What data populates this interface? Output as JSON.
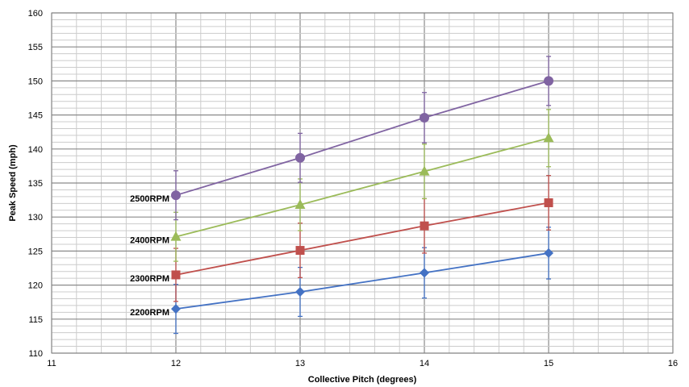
{
  "chart_data": {
    "type": "line",
    "title": "",
    "xlabel": "Collective Pitch (degrees)",
    "ylabel": "Peak Speed (mph)",
    "xlim": [
      11,
      16
    ],
    "ylim": [
      110,
      160
    ],
    "x_ticks": [
      "11",
      "12",
      "13",
      "14",
      "15",
      "16"
    ],
    "y_ticks": [
      "110",
      "115",
      "120",
      "125",
      "130",
      "135",
      "140",
      "145",
      "150",
      "155",
      "160"
    ],
    "grid": true,
    "legend": "none",
    "error_bars": true,
    "series": [
      {
        "name": "2200RPM",
        "color": "#4472c4",
        "marker": "diamond",
        "x": [
          12,
          13,
          14,
          15
        ],
        "y": [
          116.5,
          119.0,
          121.8,
          124.7
        ],
        "error": [
          3.6,
          3.6,
          3.7,
          3.8
        ]
      },
      {
        "name": "2300RPM",
        "color": "#c0504d",
        "marker": "square",
        "x": [
          12,
          13,
          14,
          15
        ],
        "y": [
          121.5,
          125.1,
          128.7,
          132.1
        ],
        "error": [
          3.9,
          4.0,
          4.0,
          4.0
        ]
      },
      {
        "name": "2400RPM",
        "color": "#9bbb59",
        "marker": "triangle",
        "x": [
          12,
          13,
          14,
          15
        ],
        "y": [
          127.1,
          131.8,
          136.7,
          141.6
        ],
        "error": [
          3.6,
          3.8,
          4.0,
          4.2
        ]
      },
      {
        "name": "2500RPM",
        "color": "#8064a2",
        "marker": "circle",
        "x": [
          12,
          13,
          14,
          15
        ],
        "y": [
          133.2,
          138.7,
          144.6,
          150.0
        ],
        "error": [
          3.6,
          3.6,
          3.7,
          3.6
        ]
      }
    ]
  }
}
